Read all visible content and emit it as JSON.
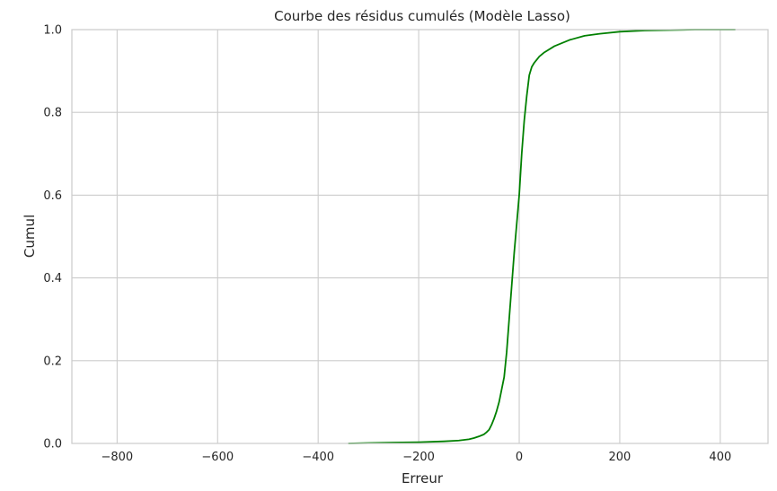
{
  "chart_data": {
    "type": "line",
    "title": "Courbe des résidus cumulés (Modèle Lasso)",
    "xlabel": "Erreur",
    "ylabel": "Cumul",
    "xlim": [
      -890,
      495
    ],
    "ylim": [
      0,
      1
    ],
    "x_ticks": [
      -800,
      -600,
      -400,
      -200,
      0,
      200,
      400
    ],
    "x_tick_labels": [
      "−800",
      "−600",
      "−400",
      "−200",
      "0",
      "200",
      "400"
    ],
    "y_ticks": [
      0,
      0.2,
      0.4,
      0.6,
      0.8,
      1.0
    ],
    "y_tick_labels": [
      "0.0",
      "0.2",
      "0.4",
      "0.6",
      "0.8",
      "1.0"
    ],
    "grid": true,
    "legend": "none",
    "series": [
      {
        "color": "#008000",
        "x": [
          -340,
          -300,
          -250,
          -200,
          -150,
          -120,
          -100,
          -90,
          -80,
          -70,
          -65,
          -60,
          -55,
          -50,
          -45,
          -40,
          -35,
          -30,
          -25,
          -20,
          -15,
          -10,
          -5,
          0,
          5,
          10,
          15,
          20,
          25,
          30,
          40,
          50,
          70,
          100,
          130,
          160,
          200,
          250,
          300,
          350,
          400,
          430
        ],
        "y": [
          0.0,
          0.001,
          0.002,
          0.003,
          0.005,
          0.007,
          0.01,
          0.013,
          0.017,
          0.022,
          0.027,
          0.033,
          0.045,
          0.06,
          0.078,
          0.1,
          0.13,
          0.16,
          0.22,
          0.3,
          0.38,
          0.46,
          0.53,
          0.6,
          0.7,
          0.78,
          0.84,
          0.89,
          0.91,
          0.92,
          0.935,
          0.945,
          0.96,
          0.975,
          0.985,
          0.99,
          0.995,
          0.998,
          0.999,
          1.0,
          1.0,
          1.0
        ]
      }
    ]
  }
}
